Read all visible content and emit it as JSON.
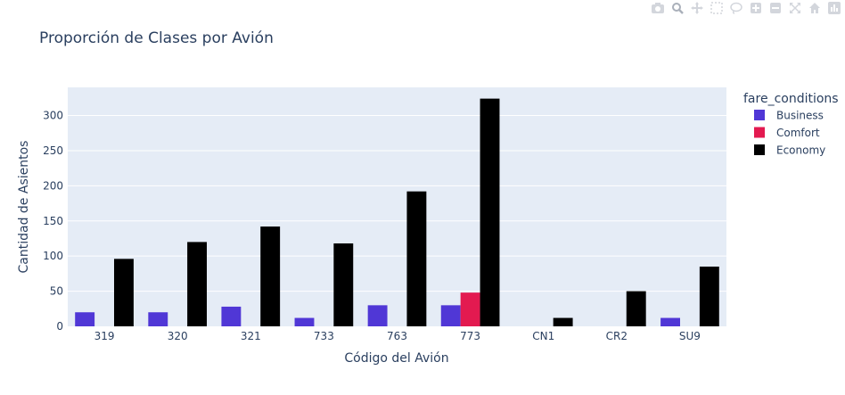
{
  "toolbar": {
    "icons": [
      "camera-icon",
      "zoom-icon",
      "pan-icon",
      "box-select-icon",
      "lasso-select-icon",
      "zoom-in-icon",
      "zoom-out-icon",
      "autoscale-icon",
      "reset-axes-icon",
      "plotly-logo-icon"
    ]
  },
  "chart_data": {
    "type": "bar",
    "title": "Proporción de Clases por Avión",
    "xlabel": "Código del Avión",
    "ylabel": "Cantidad de Asientos",
    "categories": [
      "319",
      "320",
      "321",
      "733",
      "763",
      "773",
      "CN1",
      "CR2",
      "SU9"
    ],
    "ylim": [
      0,
      340
    ],
    "yticks": [
      0,
      50,
      100,
      150,
      200,
      250,
      300
    ],
    "grid": true,
    "legend_title": "fare_conditions",
    "legend_position": "right",
    "series": [
      {
        "name": "Business",
        "color": "#5037d6",
        "values": [
          20,
          20,
          28,
          12,
          30,
          30,
          null,
          null,
          12
        ]
      },
      {
        "name": "Comfort",
        "color": "#e31a50",
        "values": [
          null,
          null,
          null,
          null,
          null,
          48,
          null,
          null,
          null
        ]
      },
      {
        "name": "Economy",
        "color": "#000000",
        "values": [
          96,
          120,
          142,
          118,
          192,
          324,
          12,
          50,
          85
        ]
      }
    ]
  }
}
